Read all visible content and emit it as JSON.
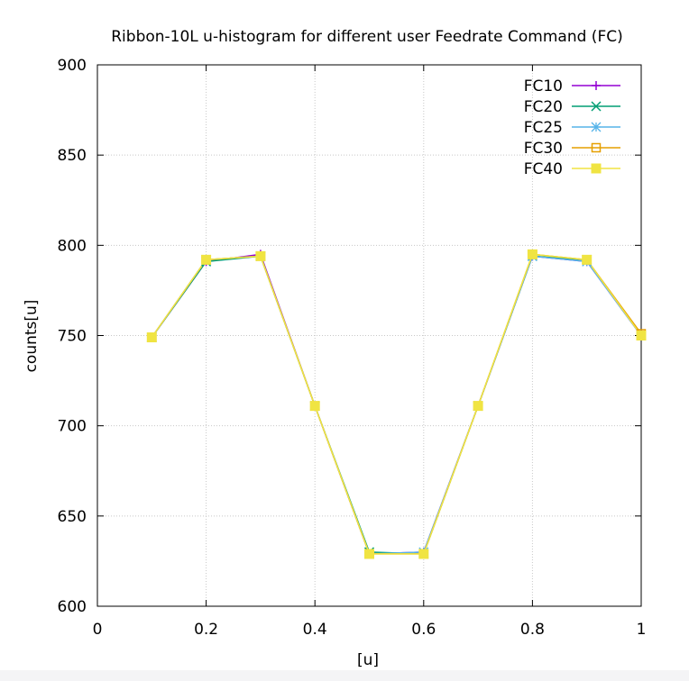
{
  "chart_data": {
    "type": "line",
    "title": "Ribbon-10L u-histogram for different user Feedrate Command (FC)",
    "xlabel": "[u]",
    "ylabel": "counts[u]",
    "xlim": [
      0,
      1
    ],
    "ylim": [
      600,
      900
    ],
    "xticks": [
      0,
      0.2,
      0.4,
      0.6,
      0.8,
      1
    ],
    "xtick_labels": [
      "0",
      "0.2",
      "0.4",
      "0.6",
      "0.8",
      "1"
    ],
    "yticks": [
      600,
      650,
      700,
      750,
      800,
      850,
      900
    ],
    "ytick_labels": [
      "600",
      "650",
      "700",
      "750",
      "800",
      "850",
      "900"
    ],
    "grid": true,
    "legend_position": "top-right",
    "x": [
      0.1,
      0.2,
      0.3,
      0.4,
      0.5,
      0.6,
      0.7,
      0.8,
      0.9,
      1.0
    ],
    "series": [
      {
        "name": "FC10",
        "color": "#9400d3",
        "marker": "plus",
        "values": [
          749,
          791,
          795,
          711,
          629,
          630,
          711,
          794,
          791,
          750
        ]
      },
      {
        "name": "FC20",
        "color": "#009e73",
        "marker": "cross",
        "values": [
          749,
          791,
          794,
          711,
          630,
          629,
          711,
          794,
          792,
          750
        ]
      },
      {
        "name": "FC25",
        "color": "#56b4e9",
        "marker": "star",
        "values": [
          749,
          792,
          794,
          711,
          629,
          630,
          711,
          794,
          791,
          750
        ]
      },
      {
        "name": "FC30",
        "color": "#e69f00",
        "marker": "open-square",
        "values": [
          749,
          792,
          794,
          711,
          629,
          629,
          711,
          795,
          792,
          751
        ]
      },
      {
        "name": "FC40",
        "color": "#f0e442",
        "marker": "filled-square",
        "values": [
          749,
          792,
          794,
          711,
          629,
          629,
          711,
          795,
          792,
          750
        ]
      }
    ]
  }
}
